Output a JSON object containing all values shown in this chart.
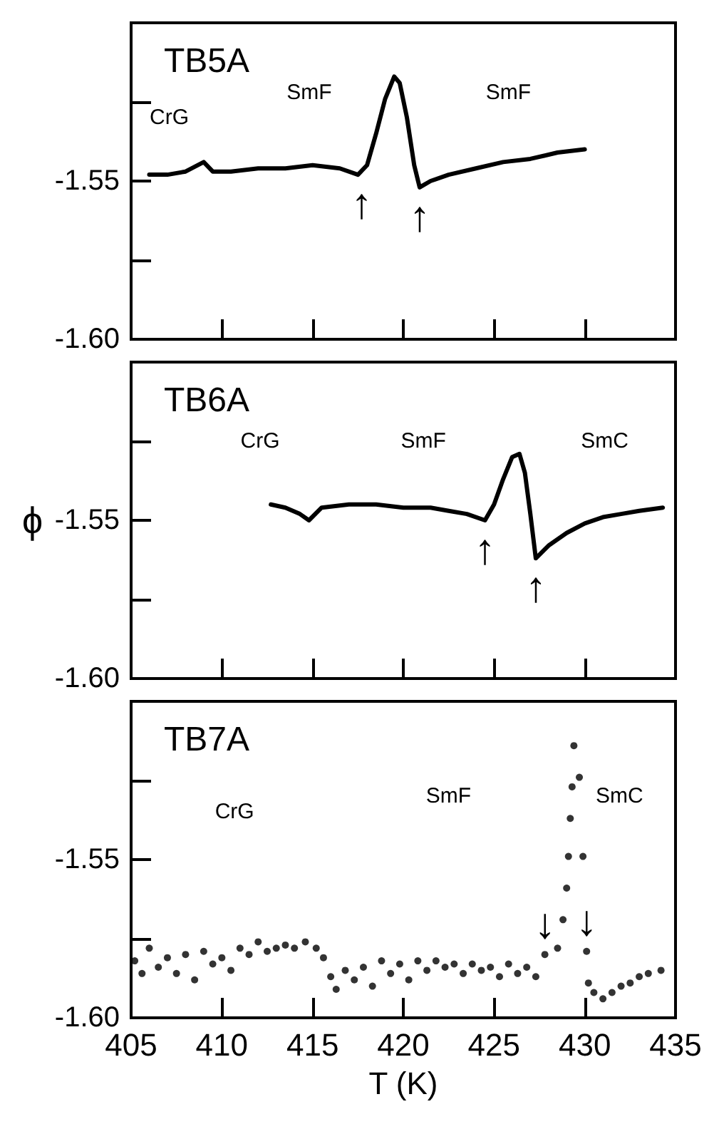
{
  "chart_data": [
    {
      "type": "line",
      "title": "TB5A",
      "color": "#000000",
      "marker": "none",
      "line_style": "solid",
      "tick_labels": "y",
      "x": [
        406,
        407,
        408,
        409,
        409.5,
        410.5,
        412,
        413.5,
        415,
        416.5,
        417.5,
        418,
        418.5,
        419,
        419.5,
        419.8,
        420.2,
        420.6,
        420.9,
        421.5,
        422.5,
        424,
        425.5,
        427,
        428.5,
        430
      ],
      "values": [
        -1.548,
        -1.548,
        -1.547,
        -1.544,
        -1.547,
        -1.547,
        -1.546,
        -1.546,
        -1.545,
        -1.546,
        -1.548,
        -1.545,
        -1.535,
        -1.524,
        -1.517,
        -1.519,
        -1.53,
        -1.545,
        -1.552,
        -1.55,
        -1.548,
        -1.546,
        -1.544,
        -1.543,
        -1.541,
        -1.54
      ],
      "xlim": [
        405,
        435
      ],
      "xticks": [
        405,
        410,
        415,
        420,
        425,
        430,
        435
      ],
      "ylim": [
        -1.6,
        -1.5
      ],
      "yticks": [
        {
          "value": -1.6,
          "label": "-1.60"
        },
        {
          "value": -1.575,
          "label": null
        },
        {
          "value": -1.55,
          "label": "-1.55"
        },
        {
          "value": -1.525,
          "label": null
        }
      ],
      "annotations": [
        "CrG",
        "SmF",
        "SmF",
        {
          "text": "↑",
          "x": 417.7,
          "y": -1.548
        },
        {
          "text": "↑",
          "x": 420.9,
          "y": -1.552
        }
      ]
    },
    {
      "type": "line",
      "title": "TB6A",
      "ylabel": "ϕ",
      "color": "#000000",
      "marker": "none",
      "line_style": "solid",
      "tick_labels": "y",
      "x": [
        412.7,
        413.5,
        414.3,
        414.8,
        415.5,
        417,
        418.5,
        420,
        421.5,
        422.5,
        423.5,
        424.5,
        425,
        425.5,
        426,
        426.4,
        426.7,
        427,
        427.3,
        428,
        429,
        430,
        431,
        432,
        433,
        434.3
      ],
      "values": [
        -1.545,
        -1.546,
        -1.548,
        -1.55,
        -1.546,
        -1.545,
        -1.545,
        -1.546,
        -1.546,
        -1.547,
        -1.548,
        -1.55,
        -1.545,
        -1.537,
        -1.53,
        -1.529,
        -1.535,
        -1.548,
        -1.562,
        -1.558,
        -1.554,
        -1.551,
        -1.549,
        -1.548,
        -1.547,
        -1.546
      ],
      "xlim": [
        405,
        435
      ],
      "xticks": [
        405,
        410,
        415,
        420,
        425,
        430,
        435
      ],
      "ylim": [
        -1.6,
        -1.5
      ],
      "yticks": [
        {
          "value": -1.6,
          "label": "-1.60"
        },
        {
          "value": -1.575,
          "label": null
        },
        {
          "value": -1.55,
          "label": "-1.55"
        },
        {
          "value": -1.525,
          "label": null
        }
      ],
      "annotations": [
        "CrG",
        "SmF",
        "SmC",
        {
          "text": "↑",
          "x": 424.5,
          "y": -1.55
        },
        {
          "text": "↑",
          "x": 427.3,
          "y": -1.562
        }
      ]
    },
    {
      "type": "scatter",
      "title": "TB7A",
      "xlabel": "T (K)",
      "color": "#000000",
      "marker": "circle",
      "x": [
        405.2,
        405.6,
        406,
        406.5,
        407,
        407.5,
        408,
        408.5,
        409,
        409.5,
        410,
        410.5,
        411,
        411.5,
        412,
        412.5,
        413,
        413.5,
        414,
        414.6,
        415.2,
        415.6,
        416,
        416.3,
        416.8,
        417.3,
        417.8,
        418.3,
        418.8,
        419.3,
        419.8,
        420.3,
        420.8,
        421.3,
        421.8,
        422.3,
        422.8,
        423.3,
        423.8,
        424.3,
        424.8,
        425.3,
        425.8,
        426.3,
        426.8,
        427.3,
        427.8,
        428.5,
        428.8,
        429,
        429.1,
        429.2,
        429.3,
        429.4,
        429.7,
        429.9,
        430.1,
        430.2,
        430.5,
        431,
        431.5,
        432,
        432.5,
        433,
        433.5,
        434.2
      ],
      "values": [
        -1.582,
        -1.586,
        -1.578,
        -1.584,
        -1.581,
        -1.586,
        -1.58,
        -1.588,
        -1.579,
        -1.583,
        -1.581,
        -1.585,
        -1.578,
        -1.58,
        -1.576,
        -1.579,
        -1.578,
        -1.577,
        -1.578,
        -1.576,
        -1.578,
        -1.581,
        -1.587,
        -1.591,
        -1.585,
        -1.588,
        -1.584,
        -1.59,
        -1.582,
        -1.586,
        -1.583,
        -1.588,
        -1.582,
        -1.585,
        -1.582,
        -1.584,
        -1.583,
        -1.586,
        -1.583,
        -1.585,
        -1.584,
        -1.587,
        -1.583,
        -1.586,
        -1.584,
        -1.587,
        -1.58,
        -1.578,
        -1.569,
        -1.559,
        -1.549,
        -1.537,
        -1.527,
        -1.514,
        -1.524,
        -1.549,
        -1.579,
        -1.589,
        -1.592,
        -1.594,
        -1.592,
        -1.59,
        -1.589,
        -1.587,
        -1.586,
        -1.585
      ],
      "xlim": [
        405,
        435
      ],
      "xticks": [
        405,
        410,
        415,
        420,
        425,
        430,
        435
      ],
      "ylim": [
        -1.6,
        -1.5
      ],
      "yticks": [
        {
          "value": -1.6,
          "label": "-1.60"
        },
        {
          "value": -1.575,
          "label": null
        },
        {
          "value": -1.55,
          "label": "-1.55"
        },
        {
          "value": -1.525,
          "label": null
        }
      ],
      "annotations": [
        "CrG",
        "SmF",
        "SmC",
        {
          "text": "↓",
          "x": 427.8,
          "y": -1.58
        },
        {
          "text": "↓",
          "x": 430.1,
          "y": -1.579
        }
      ]
    }
  ]
}
